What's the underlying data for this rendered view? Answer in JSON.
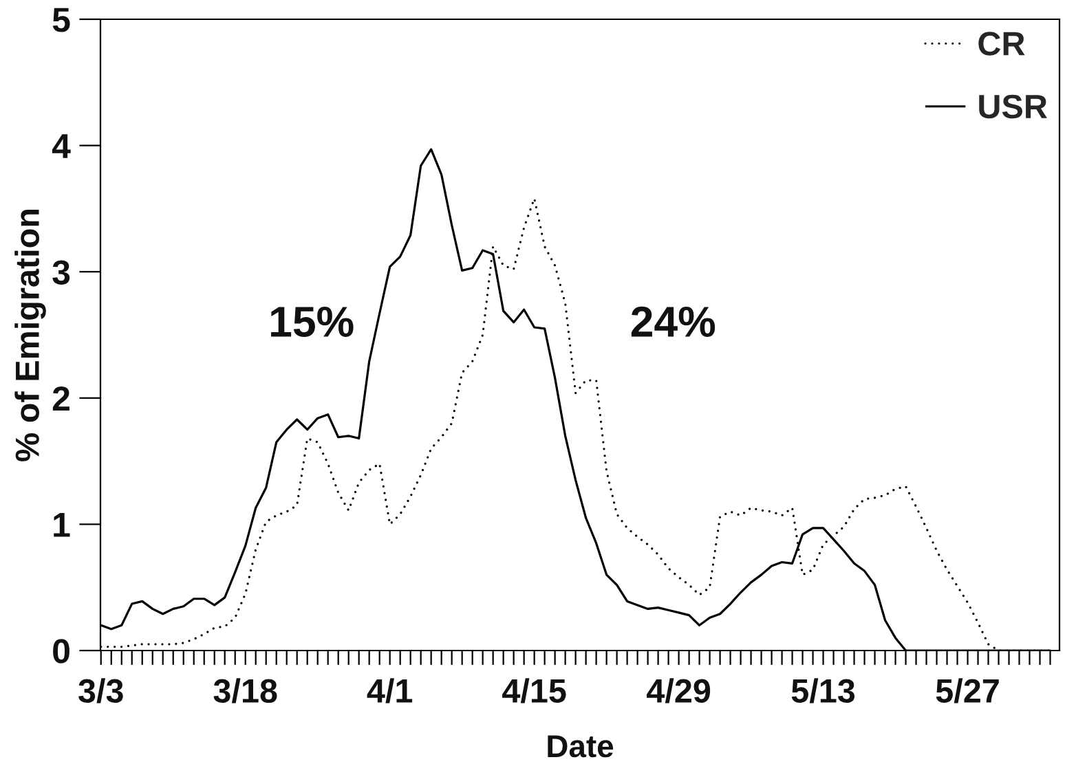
{
  "chart_data": {
    "type": "line",
    "xlabel": "Date",
    "ylabel": "% of Emigration",
    "annotations": [
      "15%",
      "24%"
    ],
    "legend": "top right",
    "categories": [
      "3/3",
      null,
      null,
      null,
      null,
      null,
      null,
      null,
      null,
      null,
      null,
      null,
      null,
      null,
      "3/18",
      null,
      null,
      null,
      null,
      null,
      null,
      null,
      null,
      null,
      null,
      null,
      null,
      null,
      "4/1",
      null,
      null,
      null,
      null,
      null,
      null,
      null,
      null,
      null,
      null,
      null,
      null,
      null,
      "4/15",
      null,
      null,
      null,
      null,
      null,
      null,
      null,
      null,
      null,
      null,
      null,
      null,
      null,
      "4/29",
      null,
      null,
      null,
      null,
      null,
      null,
      null,
      null,
      null,
      null,
      null,
      null,
      null,
      "5/13",
      null,
      null,
      null,
      null,
      null,
      null,
      null,
      null,
      null,
      null,
      null,
      null,
      null,
      "5/27",
      null,
      null,
      null,
      null,
      null,
      null,
      null,
      null
    ],
    "series": [
      {
        "name": "CR",
        "color": "#000000",
        "line_style": "dotted",
        "values": [
          0.03,
          0.03,
          0.03,
          0.04,
          0.05,
          0.05,
          0.05,
          0.05,
          0.06,
          0.09,
          0.13,
          0.18,
          0.19,
          0.26,
          0.45,
          0.8,
          1.02,
          1.07,
          1.1,
          1.15,
          1.68,
          1.65,
          1.48,
          1.25,
          1.11,
          1.33,
          1.43,
          1.48,
          1.0,
          1.08,
          1.22,
          1.39,
          1.6,
          1.69,
          1.8,
          2.2,
          2.29,
          2.5,
          3.2,
          3.05,
          3.02,
          3.35,
          3.58,
          3.2,
          3.05,
          2.75,
          2.04,
          2.14,
          2.14,
          1.42,
          1.08,
          0.97,
          0.9,
          0.84,
          0.76,
          0.65,
          0.58,
          0.52,
          0.44,
          0.5,
          1.06,
          1.1,
          1.07,
          1.13,
          1.11,
          1.1,
          1.07,
          1.13,
          0.6,
          0.64,
          0.84,
          0.91,
          0.98,
          1.12,
          1.2,
          1.21,
          1.23,
          1.28,
          1.3,
          1.14,
          0.97,
          0.79,
          0.64,
          0.51,
          0.38,
          0.22,
          0.05,
          0,
          0,
          0,
          0,
          0,
          0
        ]
      },
      {
        "name": "USR",
        "color": "#000000",
        "line_style": "solid",
        "values": [
          0.2,
          0.17,
          0.2,
          0.37,
          0.39,
          0.33,
          0.29,
          0.33,
          0.35,
          0.41,
          0.41,
          0.36,
          0.42,
          0.62,
          0.83,
          1.13,
          1.29,
          1.65,
          1.75,
          1.83,
          1.75,
          1.84,
          1.87,
          1.69,
          1.7,
          1.68,
          2.29,
          2.67,
          3.04,
          3.12,
          3.29,
          3.84,
          3.97,
          3.77,
          3.37,
          3.01,
          3.03,
          3.17,
          3.14,
          2.69,
          2.6,
          2.7,
          2.56,
          2.55,
          2.16,
          1.7,
          1.35,
          1.05,
          0.85,
          0.6,
          0.52,
          0.39,
          0.36,
          0.33,
          0.34,
          0.32,
          0.3,
          0.28,
          0.2,
          0.26,
          0.29,
          0.37,
          0.46,
          0.54,
          0.6,
          0.67,
          0.7,
          0.69,
          0.92,
          0.97,
          0.97,
          0.88,
          0.79,
          0.69,
          0.63,
          0.52,
          0.24,
          0.1,
          0,
          0,
          0,
          0,
          0,
          0,
          0,
          0,
          0,
          0,
          0,
          0,
          0,
          0,
          0
        ]
      }
    ],
    "ylim": [
      0,
      5
    ],
    "yticks": [
      0,
      1,
      2,
      3,
      4,
      5
    ]
  }
}
